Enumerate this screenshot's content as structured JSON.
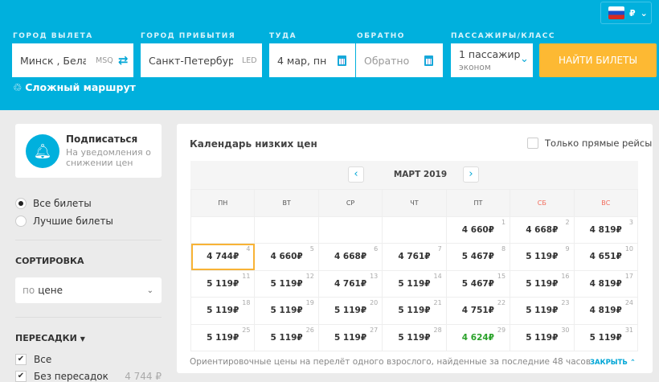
{
  "header": {
    "currency": "₽",
    "from_label": "ГОРОД ВЫЛЕТА",
    "to_label": "ГОРОД ПРИБЫТИЯ",
    "depart_label": "ТУДА",
    "return_label": "ОБРАТНО",
    "pax_label": "ПАССАЖИРЫ/КЛАСС",
    "from_value": "Минск , Беларусь",
    "from_code": "MSQ",
    "to_value": "Санкт-Петербург, Россия",
    "to_code": "LED",
    "depart_value": "4 мар, пн",
    "return_placeholder": "Обратно",
    "pax_value": "1 пассажир",
    "class_value": "эконом",
    "search_button": "НАЙТИ БИЛЕТЫ",
    "complex_route": "Сложный маршрут"
  },
  "sidebar": {
    "subscribe_title": "Подписаться",
    "subscribe_text": "На уведомления о снижении цен",
    "radios": [
      {
        "label": "Все билеты",
        "selected": true
      },
      {
        "label": "Лучшие билеты",
        "selected": false
      }
    ],
    "sort_title": "СОРТИРОВКА",
    "sort_prefix": "по",
    "sort_value": "цене",
    "transfers_title": "ПЕРЕСАДКИ",
    "checks": [
      {
        "label": "Все",
        "checked": true
      },
      {
        "label": "Без пересадок",
        "checked": true,
        "price": "4 744 ₽"
      }
    ]
  },
  "calendar": {
    "title": "Календарь низких цен",
    "direct_only": "Только прямые рейсы",
    "month": "МАРТ 2019",
    "weekdays": [
      "ПН",
      "ВТ",
      "СР",
      "ЧТ",
      "ПТ",
      "СБ",
      "ВС"
    ],
    "weeks": [
      [
        null,
        null,
        null,
        null,
        {
          "d": "1",
          "p": "4 660₽"
        },
        {
          "d": "2",
          "p": "4 668₽"
        },
        {
          "d": "3",
          "p": "4 819₽"
        }
      ],
      [
        {
          "d": "4",
          "p": "4 744₽",
          "selected": true
        },
        {
          "d": "5",
          "p": "4 660₽"
        },
        {
          "d": "6",
          "p": "4 668₽"
        },
        {
          "d": "7",
          "p": "4 761₽"
        },
        {
          "d": "8",
          "p": "5 467₽"
        },
        {
          "d": "9",
          "p": "5 119₽"
        },
        {
          "d": "10",
          "p": "4 651₽"
        }
      ],
      [
        {
          "d": "11",
          "p": "5 119₽"
        },
        {
          "d": "12",
          "p": "5 119₽"
        },
        {
          "d": "13",
          "p": "4 761₽"
        },
        {
          "d": "14",
          "p": "5 119₽"
        },
        {
          "d": "15",
          "p": "5 467₽"
        },
        {
          "d": "16",
          "p": "5 119₽"
        },
        {
          "d": "17",
          "p": "4 819₽"
        }
      ],
      [
        {
          "d": "18",
          "p": "5 119₽"
        },
        {
          "d": "19",
          "p": "5 119₽"
        },
        {
          "d": "20",
          "p": "5 119₽"
        },
        {
          "d": "21",
          "p": "5 119₽"
        },
        {
          "d": "22",
          "p": "4 751₽"
        },
        {
          "d": "23",
          "p": "5 119₽"
        },
        {
          "d": "24",
          "p": "4 819₽"
        }
      ],
      [
        {
          "d": "25",
          "p": "5 119₽"
        },
        {
          "d": "26",
          "p": "5 119₽"
        },
        {
          "d": "27",
          "p": "5 119₽"
        },
        {
          "d": "28",
          "p": "5 119₽"
        },
        {
          "d": "29",
          "p": "4 624₽",
          "lowest": true
        },
        {
          "d": "30",
          "p": "5 119₽"
        },
        {
          "d": "31",
          "p": "5 119₽"
        }
      ]
    ],
    "note": "Ориентировочные цены на перелёт одного взрослого, найденные за последние 48 часов",
    "close": "ЗАКРЫТЬ",
    "colors": {
      "accent": "#00b0dd",
      "lowest": "#2aa22a",
      "selected": "#f8b336",
      "weekend": "#f26b5b"
    }
  }
}
